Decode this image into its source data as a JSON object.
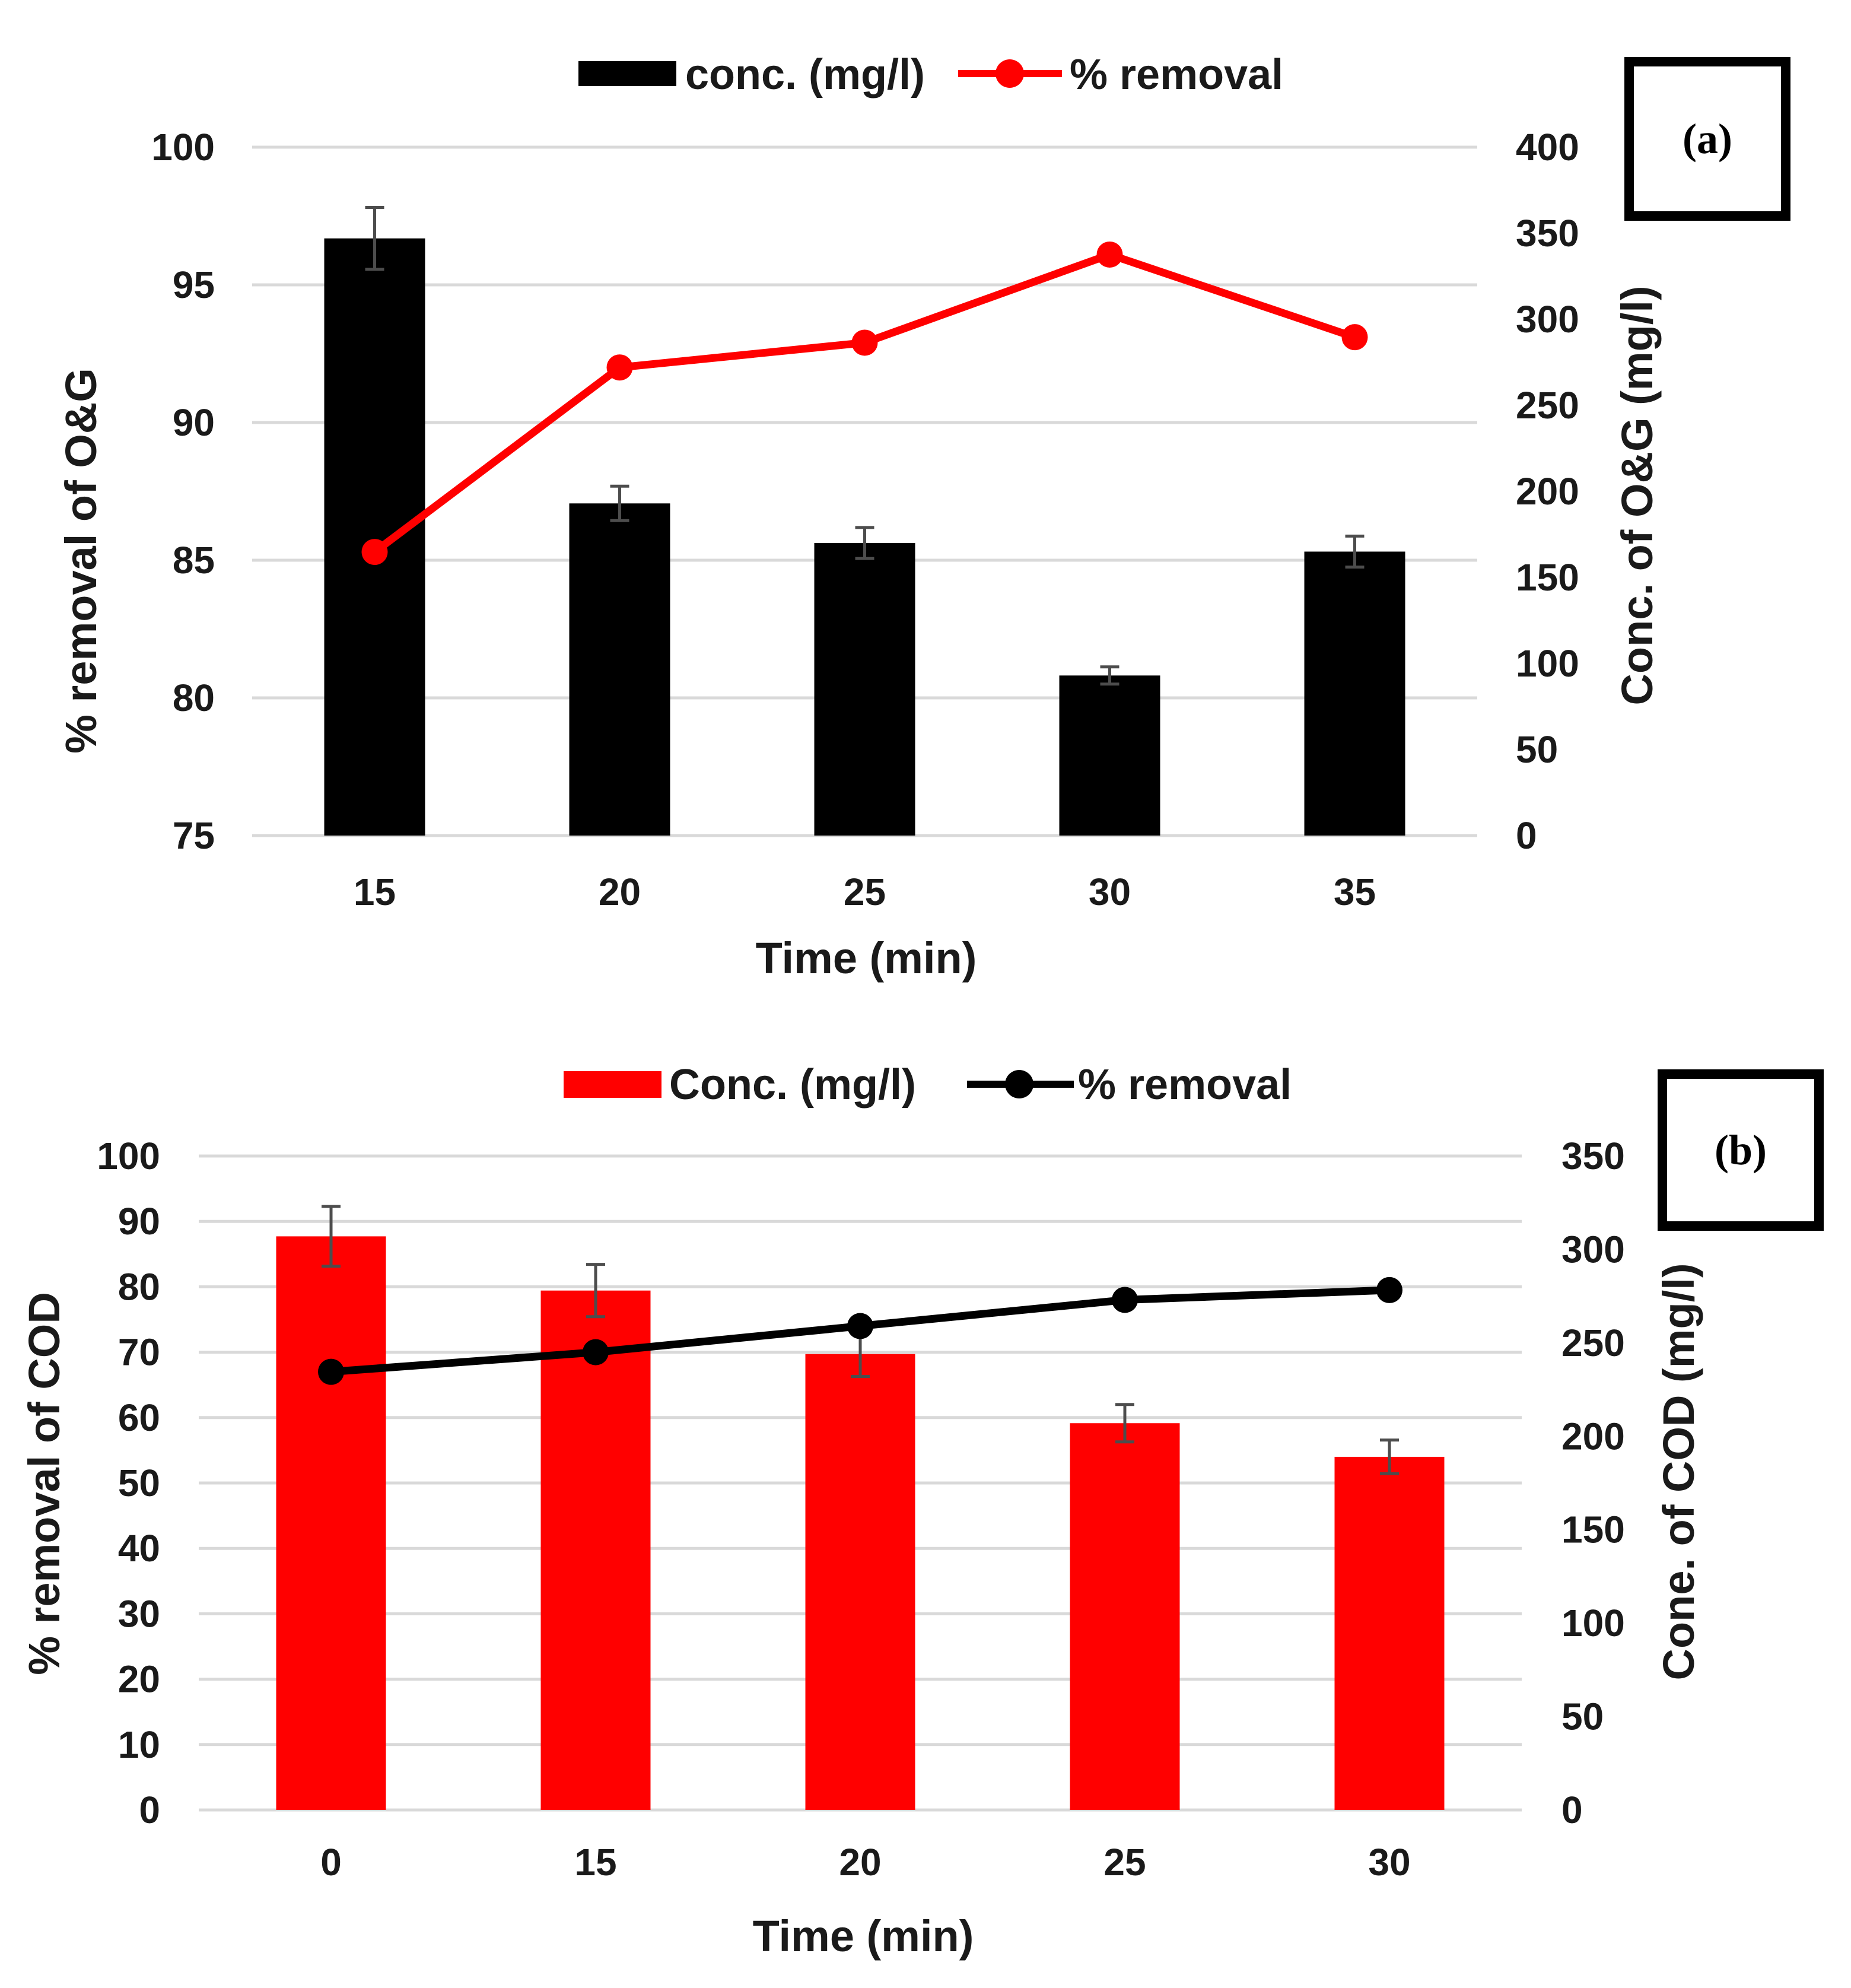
{
  "chart_data": [
    {
      "panel": "(a)",
      "type": "bar+line",
      "xlabel": "Time (min)",
      "categories": [
        "15",
        "20",
        "25",
        "30",
        "35"
      ],
      "left_axis": {
        "label": "% removal of O&G",
        "ylim": [
          75,
          100
        ],
        "ticks": [
          "75",
          "80",
          "85",
          "90",
          "95",
          "100"
        ]
      },
      "right_axis": {
        "label": "Conc. of O&G (mg/l)",
        "ylim": [
          0,
          400
        ],
        "ticks": [
          "0",
          "50",
          "100",
          "150",
          "200",
          "250",
          "300",
          "350",
          "400"
        ]
      },
      "series": [
        {
          "name": "conc. (mg/l)",
          "kind": "bar",
          "axis": "right",
          "color": "#000000",
          "values": [
            347,
            193,
            170,
            93,
            165
          ],
          "errors": [
            18,
            10,
            9,
            5,
            9
          ]
        },
        {
          "name": "% removal",
          "kind": "line",
          "axis": "left",
          "color": "#ff0000",
          "values": [
            85.3,
            92.0,
            92.9,
            96.1,
            93.1
          ]
        }
      ]
    },
    {
      "panel": "(b)",
      "type": "bar+line",
      "xlabel": "Time (min)",
      "categories": [
        "0",
        "15",
        "20",
        "25",
        "30"
      ],
      "left_axis": {
        "label": "% removal of COD",
        "ylim": [
          0,
          100
        ],
        "ticks": [
          "0",
          "10",
          "20",
          "30",
          "40",
          "50",
          "60",
          "70",
          "80",
          "90",
          "100"
        ]
      },
      "right_axis": {
        "label": "Cone. of COD (mg/l)",
        "ylim": [
          0,
          350
        ],
        "ticks": [
          "0",
          "50",
          "100",
          "150",
          "200",
          "250",
          "300",
          "350"
        ]
      },
      "series": [
        {
          "name": "Conc. (mg/l)",
          "kind": "bar",
          "axis": "right",
          "color": "#ff0000",
          "values": [
            307,
            278,
            244,
            207,
            189
          ],
          "errors": [
            16,
            14,
            12,
            10,
            9
          ]
        },
        {
          "name": "% removal",
          "kind": "line",
          "axis": "left",
          "color": "#000000",
          "values": [
            67,
            70,
            74,
            78,
            79.5
          ]
        }
      ]
    }
  ]
}
